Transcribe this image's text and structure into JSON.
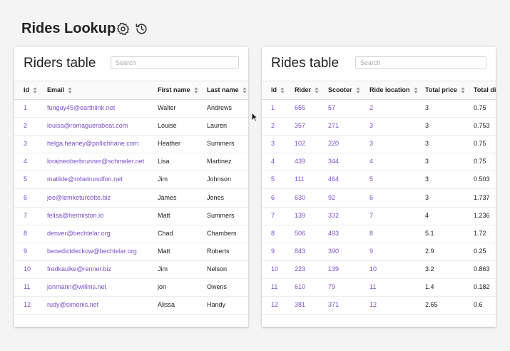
{
  "header": {
    "title": "Rides Lookup"
  },
  "riders": {
    "title": "Riders table",
    "search_placeholder": "Search",
    "columns": [
      "Id",
      "Email",
      "First name",
      "Last name"
    ],
    "rows": [
      [
        "1",
        "funguy45@earthlink.net",
        "Walter",
        "Andrews"
      ],
      [
        "2",
        "louisa@romaguerabeat.com",
        "Louise",
        "Lauren"
      ],
      [
        "3",
        "helga.heaney@pollichhane.com",
        "Heather",
        "Summers"
      ],
      [
        "4",
        "loraineoberbrunner@schmeler.net",
        "Lisa",
        "Martinez"
      ],
      [
        "5",
        "matilde@robelrunolfon.net",
        "Jim",
        "Johnson"
      ],
      [
        "6",
        "jee@lemketurcotte.biz",
        "James",
        "Jones"
      ],
      [
        "7",
        "felisa@hermiston.io",
        "Matt",
        "Summers"
      ],
      [
        "8",
        "denver@bechtelar.org",
        "Chad",
        "Chambers"
      ],
      [
        "9",
        "benedictdeckow@bechtelar.org",
        "Matt",
        "Roberts"
      ],
      [
        "10",
        "fredkaulke@renner.biz",
        "Jim",
        "Nelson"
      ],
      [
        "11",
        "jonmann@willms.net",
        "jon",
        "Owens"
      ],
      [
        "12",
        "rudy@simonis.net",
        "Alissa",
        "Handy"
      ]
    ]
  },
  "rides": {
    "title": "Rides table",
    "search_placeholder": "Search",
    "columns": [
      "Id",
      "Rider",
      "Scooter",
      "Ride location",
      "Total price",
      "Total distance"
    ],
    "rows": [
      [
        "1",
        "655",
        "57",
        "2",
        "3",
        "0.75"
      ],
      [
        "2",
        "357",
        "271",
        "3",
        "3",
        "0.753"
      ],
      [
        "3",
        "102",
        "220",
        "3",
        "3",
        "0.75"
      ],
      [
        "4",
        "439",
        "344",
        "4",
        "3",
        "0.75"
      ],
      [
        "5",
        "111",
        "464",
        "5",
        "3",
        "0.503"
      ],
      [
        "6",
        "630",
        "92",
        "6",
        "3",
        "1.737"
      ],
      [
        "7",
        "139",
        "332",
        "7",
        "4",
        "1.236"
      ],
      [
        "8",
        "506",
        "493",
        "8",
        "5.1",
        "1.72"
      ],
      [
        "9",
        "843",
        "390",
        "9",
        "2.9",
        "0.25"
      ],
      [
        "10",
        "223",
        "139",
        "10",
        "3.2",
        "0.863"
      ],
      [
        "11",
        "610",
        "79",
        "11",
        "1.4",
        "0.182"
      ],
      [
        "12",
        "381",
        "371",
        "12",
        "2.65",
        "0.6"
      ]
    ]
  }
}
